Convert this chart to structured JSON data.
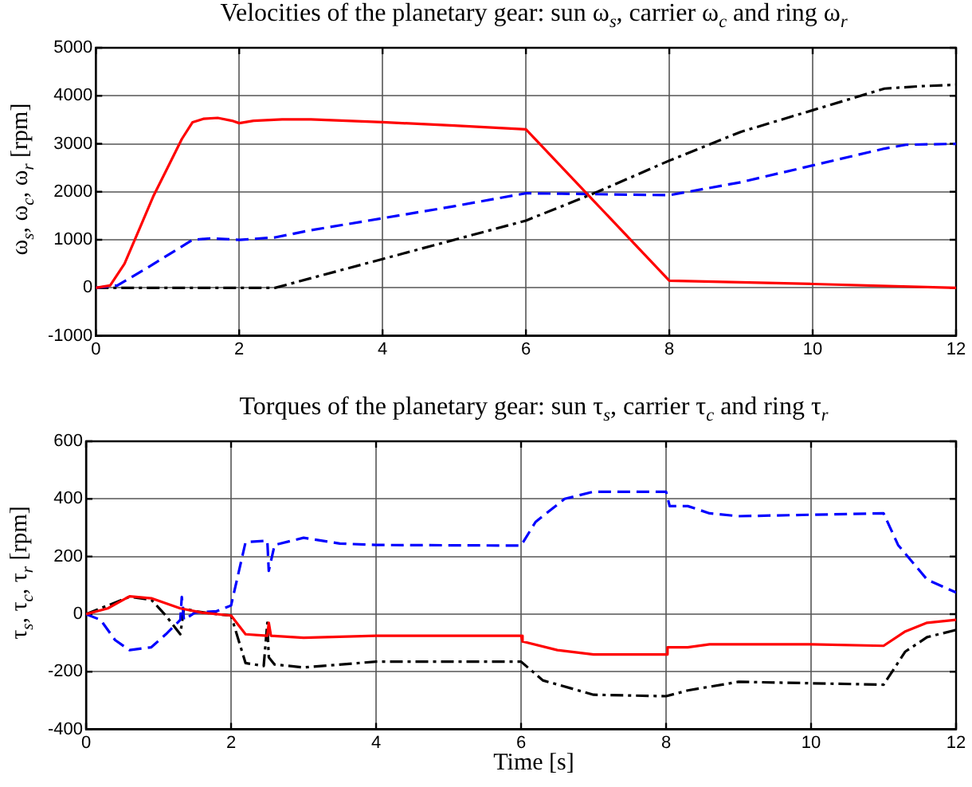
{
  "chart_data": [
    {
      "type": "line",
      "title": "Velocities of the planetary gear: sun ω$_{s}$, carrier ω$_{c}$ and ring ω$_{r}$",
      "ylabel": "ω$_{s}$, ω$_{c}$, ω$_{r}$ [rpm]",
      "xlim": [
        0,
        12
      ],
      "xticks": [
        0,
        2,
        4,
        6,
        8,
        10,
        12
      ],
      "ylim": [
        -1000,
        5000
      ],
      "yticks": [
        -1000,
        0,
        1000,
        2000,
        3000,
        4000,
        5000
      ],
      "grid": true,
      "legend": false,
      "marker": "none",
      "series": [
        {
          "color": "#ff0000",
          "line_style": "solid",
          "x": [
            0,
            0.2,
            0.4,
            0.6,
            0.8,
            1.0,
            1.2,
            1.35,
            1.5,
            1.7,
            1.9,
            2.0,
            2.2,
            2.6,
            3,
            4,
            5,
            6,
            8,
            10,
            12
          ],
          "values": [
            0,
            50,
            500,
            1200,
            1900,
            2500,
            3100,
            3450,
            3520,
            3540,
            3480,
            3430,
            3480,
            3510,
            3510,
            3450,
            3380,
            3300,
            150,
            80,
            0
          ]
        },
        {
          "color": "#0000ff",
          "line_style": "dashed",
          "x": [
            0,
            0.3,
            0.7,
            1.35,
            1.6,
            2,
            2.5,
            3,
            4,
            5,
            6,
            6.5,
            8,
            9,
            10,
            11,
            11.3,
            12
          ],
          "values": [
            0,
            50,
            400,
            1000,
            1030,
            1000,
            1050,
            1200,
            1450,
            1700,
            1970,
            1960,
            1930,
            2200,
            2550,
            2900,
            2980,
            3000
          ]
        },
        {
          "color": "#000000",
          "line_style": "dashdot",
          "x": [
            0,
            2.5,
            4,
            6,
            7,
            8,
            9,
            10,
            11,
            11.5,
            12
          ],
          "values": [
            0,
            0,
            600,
            1400,
            2000,
            2650,
            3250,
            3700,
            4150,
            4200,
            4230
          ]
        }
      ]
    },
    {
      "type": "line",
      "title": "Torques of the planetary gear: sun τ$_{s}$, carrier τ$_{c}$ and ring τ$_{r}$",
      "ylabel": "τ$_{s}$, τ$_{c}$, τ$_{r}$ [rpm]",
      "xlabel": "Time [s]",
      "xlim": [
        0,
        12
      ],
      "xticks": [
        0,
        2,
        4,
        6,
        8,
        10,
        12
      ],
      "ylim": [
        -400,
        600
      ],
      "yticks": [
        -400,
        -200,
        0,
        200,
        400,
        600
      ],
      "grid": true,
      "legend": false,
      "marker": "none",
      "series": [
        {
          "color": "#ff0000",
          "line_style": "solid",
          "x": [
            0,
            0.3,
            0.6,
            0.9,
            1.3,
            1.6,
            2,
            2.2,
            2.5,
            2.52,
            2.55,
            3,
            4,
            6,
            6.02,
            6.5,
            7,
            8,
            8.02,
            8.3,
            8.6,
            10,
            11,
            11.3,
            11.6,
            12
          ],
          "values": [
            0,
            20,
            62,
            55,
            20,
            5,
            -5,
            -70,
            -75,
            -30,
            -75,
            -82,
            -75,
            -75,
            -95,
            -125,
            -140,
            -140,
            -115,
            -115,
            -105,
            -105,
            -110,
            -60,
            -30,
            -20
          ]
        },
        {
          "color": "#0000ff",
          "line_style": "dashed",
          "x": [
            0,
            0.2,
            0.4,
            0.6,
            0.9,
            1.1,
            1.3,
            1.32,
            1.35,
            1.5,
            1.8,
            2,
            2.2,
            2.5,
            2.52,
            2.6,
            3,
            3.5,
            4,
            6,
            6.2,
            6.6,
            7,
            8,
            8.05,
            8.3,
            8.6,
            9,
            10,
            11,
            11.2,
            11.6,
            12
          ],
          "values": [
            0,
            -20,
            -90,
            -125,
            -115,
            -70,
            -20,
            60,
            -20,
            5,
            10,
            30,
            250,
            255,
            150,
            240,
            265,
            245,
            240,
            238,
            320,
            400,
            425,
            425,
            375,
            375,
            350,
            340,
            345,
            350,
            240,
            120,
            75
          ]
        },
        {
          "color": "#000000",
          "line_style": "dashdot",
          "x": [
            0,
            0.3,
            0.6,
            0.9,
            1.1,
            1.3,
            1.35,
            1.5,
            1.8,
            2,
            2.2,
            2.45,
            2.5,
            2.52,
            2.6,
            3,
            4,
            6,
            6.3,
            7,
            8,
            8.3,
            9,
            10,
            11,
            11.3,
            11.6,
            12
          ],
          "values": [
            0,
            30,
            60,
            50,
            -5,
            -70,
            20,
            10,
            0,
            -5,
            -170,
            -180,
            -30,
            -150,
            -175,
            -185,
            -165,
            -165,
            -230,
            -280,
            -285,
            -265,
            -235,
            -240,
            -245,
            -130,
            -80,
            -55
          ]
        }
      ]
    }
  ]
}
